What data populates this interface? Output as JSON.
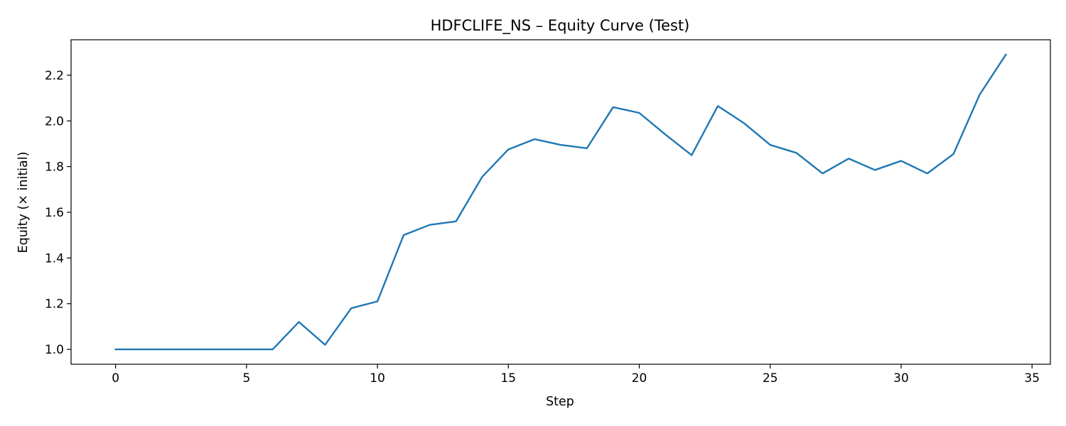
{
  "chart_data": {
    "type": "line",
    "title": "HDFCLIFE_NS – Equity Curve (Test)",
    "xlabel": "Step",
    "ylabel": "Equity (× initial)",
    "xlim": [
      -1.7,
      35.7
    ],
    "ylim": [
      0.935,
      2.355
    ],
    "xticks": [
      0,
      5,
      10,
      15,
      20,
      25,
      30,
      35
    ],
    "xtick_labels": [
      "0",
      "5",
      "10",
      "15",
      "20",
      "25",
      "30",
      "35"
    ],
    "yticks": [
      1.0,
      1.2,
      1.4,
      1.6,
      1.8,
      2.0,
      2.2
    ],
    "ytick_labels": [
      "1.0",
      "1.2",
      "1.4",
      "1.6",
      "1.8",
      "2.0",
      "2.2"
    ],
    "grid": false,
    "legend": "none",
    "series": [
      {
        "color": "#1f77b4",
        "x": [
          0,
          1,
          2,
          3,
          4,
          5,
          6,
          7,
          8,
          9,
          10,
          11,
          12,
          13,
          14,
          15,
          16,
          17,
          18,
          19,
          20,
          21,
          22,
          23,
          24,
          25,
          26,
          27,
          28,
          29,
          30,
          31,
          32,
          33,
          34
        ],
        "y": [
          1.0,
          1.0,
          1.0,
          1.0,
          1.0,
          1.0,
          1.0,
          1.12,
          1.02,
          1.18,
          1.21,
          1.5,
          1.545,
          1.56,
          1.755,
          1.875,
          1.92,
          1.895,
          1.88,
          2.06,
          2.035,
          1.94,
          1.85,
          2.065,
          1.99,
          1.895,
          1.86,
          1.77,
          1.835,
          1.785,
          1.825,
          1.77,
          1.855,
          2.115,
          2.29
        ]
      }
    ]
  }
}
